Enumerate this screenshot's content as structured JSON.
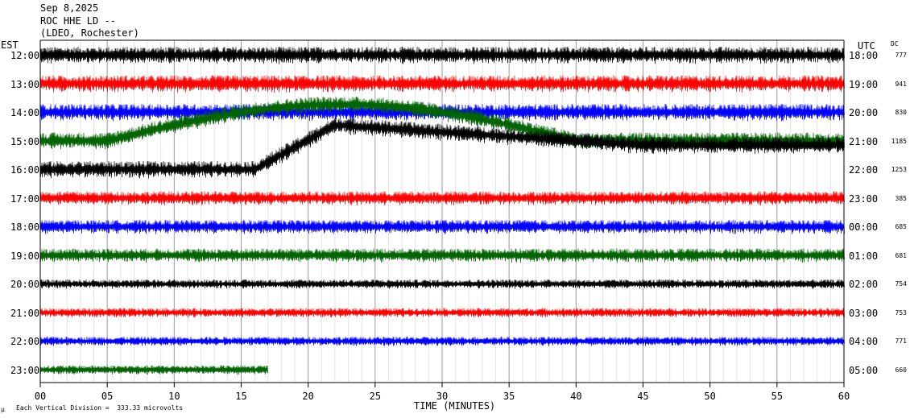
{
  "header": {
    "date": "Sep 8,2025",
    "station": "ROC HHE LD --",
    "network": "(LDEO, Rochester)"
  },
  "chart_data": {
    "type": "line",
    "title": "",
    "left_axis_label": "EST",
    "right_axis_label": "UTC",
    "dc_header": "DC",
    "xlabel": "TIME (MINUTES)",
    "xlim": [
      0,
      60
    ],
    "x_ticks": [
      "00",
      "05",
      "10",
      "15",
      "20",
      "25",
      "30",
      "35",
      "40",
      "45",
      "50",
      "55",
      "60"
    ],
    "grid": "vertical lines every minute",
    "scale_note": "Each Vertical Division =  333.33 microvolts",
    "corner_mark": "μ",
    "traces": [
      {
        "est": "12:00",
        "utc": "18:00",
        "dc": "777",
        "color": "#000000",
        "minutes": 60
      },
      {
        "est": "13:00",
        "utc": "19:00",
        "dc": "941",
        "color": "#ff0000",
        "minutes": 60
      },
      {
        "est": "14:00",
        "utc": "20:00",
        "dc": "830",
        "color": "#0000ff",
        "minutes": 60
      },
      {
        "est": "15:00",
        "utc": "21:00",
        "dc": "1185",
        "color": "#006400",
        "minutes": 60
      },
      {
        "est": "16:00",
        "utc": "22:00",
        "dc": "1253",
        "color": "#000000",
        "minutes": 60
      },
      {
        "est": "17:00",
        "utc": "23:00",
        "dc": "385",
        "color": "#ff0000",
        "minutes": 60
      },
      {
        "est": "18:00",
        "utc": "00:00",
        "dc": "685",
        "color": "#0000ff",
        "minutes": 60
      },
      {
        "est": "19:00",
        "utc": "01:00",
        "dc": "681",
        "color": "#006400",
        "minutes": 60
      },
      {
        "est": "20:00",
        "utc": "02:00",
        "dc": "754",
        "color": "#000000",
        "minutes": 60
      },
      {
        "est": "21:00",
        "utc": "03:00",
        "dc": "753",
        "color": "#ff0000",
        "minutes": 60
      },
      {
        "est": "22:00",
        "utc": "04:00",
        "dc": "771",
        "color": "#0000ff",
        "minutes": 60
      },
      {
        "est": "23:00",
        "utc": "05:00",
        "dc": "660",
        "color": "#006400",
        "minutes": 17
      }
    ]
  }
}
